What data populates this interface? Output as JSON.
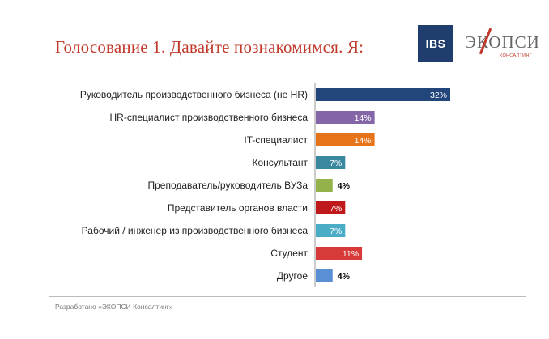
{
  "header": {
    "title": "Голосование 1. Давайте познакомимся.  Я:"
  },
  "logos": {
    "ibs": "IBS",
    "ekopsi_main": "ЭКОПСИ",
    "ekopsi_sub": "КОНСАЛТИНГ"
  },
  "footer": {
    "text": "Разработано «ЭКОПСИ Консалтинг»"
  },
  "chart_data": {
    "type": "bar",
    "orientation": "horizontal",
    "categories": [
      "Руководитель производственного бизнеса (не HR)",
      "HR-специалист производственного бизнеса",
      "IT-специалист",
      "Консультант",
      "Преподаватель/руководитель ВУЗа",
      "Представитель органов власти",
      "Рабочий / инженер из производственного бизнеса",
      "Студент",
      "Другое"
    ],
    "values": [
      32,
      14,
      14,
      7,
      4,
      7,
      7,
      11,
      4
    ],
    "value_labels": [
      "32%",
      "14%",
      "14%",
      "7%",
      "4%",
      "7%",
      "7%",
      "11%",
      "4%"
    ],
    "colors": [
      "#23467a",
      "#8466a8",
      "#e5741a",
      "#3a88a0",
      "#93b34a",
      "#c0191c",
      "#4bacc6",
      "#d83a3a",
      "#5a8fd6"
    ],
    "label_outside": [
      false,
      false,
      false,
      false,
      true,
      false,
      false,
      false,
      true
    ],
    "xlim": [
      0,
      32
    ],
    "grid": false,
    "legend": "none"
  }
}
